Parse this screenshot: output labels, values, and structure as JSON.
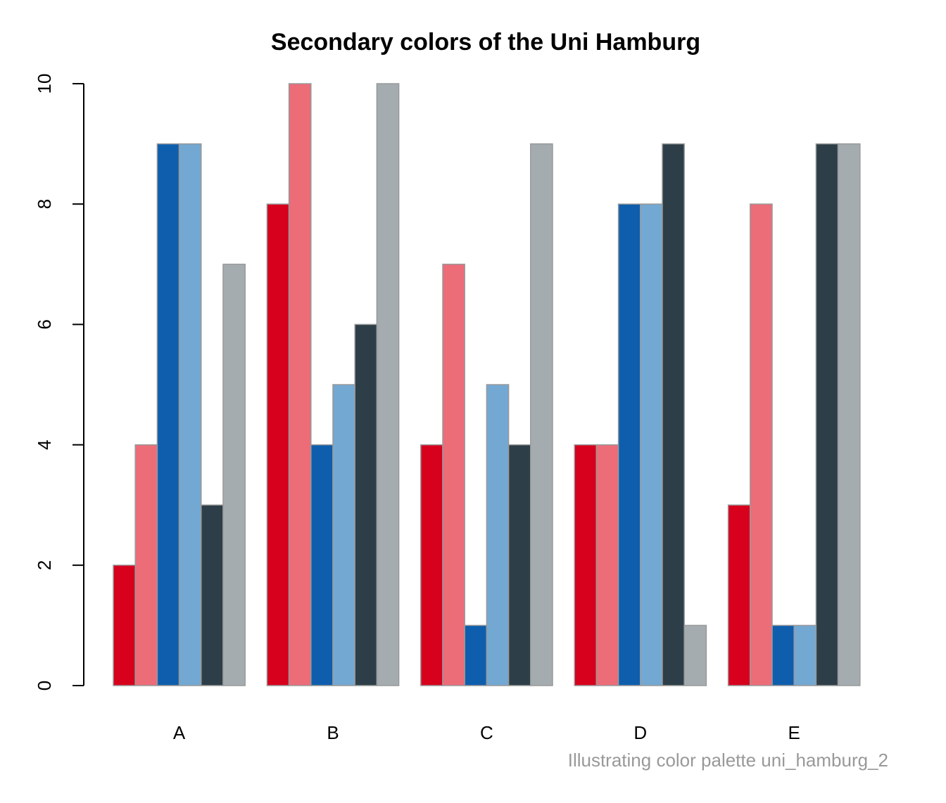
{
  "chart_data": {
    "type": "bar",
    "title": "Secondary colors of the Uni Hamburg",
    "caption": "Illustrating color palette uni_hamburg_2",
    "categories": [
      "A",
      "B",
      "C",
      "D",
      "E"
    ],
    "series": [
      {
        "color": "#d7001d",
        "values": [
          2,
          8,
          4,
          4,
          3
        ]
      },
      {
        "color": "#ec6c78",
        "values": [
          4,
          10,
          7,
          4,
          8
        ]
      },
      {
        "color": "#0e5ead",
        "values": [
          9,
          4,
          1,
          8,
          1
        ]
      },
      {
        "color": "#73a8d3",
        "values": [
          9,
          5,
          5,
          8,
          1
        ]
      },
      {
        "color": "#2d3e48",
        "values": [
          3,
          6,
          4,
          9,
          9
        ]
      },
      {
        "color": "#a4acb0",
        "values": [
          7,
          10,
          9,
          1,
          9
        ]
      }
    ],
    "ylim": [
      0,
      10
    ],
    "yticks": [
      0,
      2,
      4,
      6,
      8,
      10
    ]
  }
}
